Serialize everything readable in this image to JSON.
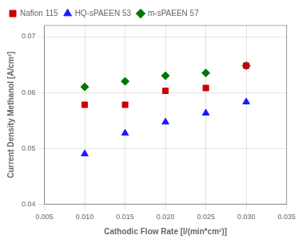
{
  "chart_data": {
    "type": "scatter",
    "xlabel": "Cathodic Flow Rate [l/(min*cm²)]",
    "ylabel": "Current Density Methanol [A/cm²]",
    "series": [
      {
        "name": "Nafion 115",
        "color": "#cc0000",
        "marker": "square",
        "x": [
          0.01,
          0.015,
          0.02,
          0.025,
          0.03
        ],
        "values": [
          0.0578,
          0.0578,
          0.0603,
          0.0608,
          0.0648
        ]
      },
      {
        "name": "HQ-sPAEEN 53",
        "color": "#1a1aff",
        "marker": "triangle",
        "x": [
          0.01,
          0.015,
          0.02,
          0.025,
          0.03
        ],
        "values": [
          0.049,
          0.0527,
          0.0547,
          0.0563,
          0.0583
        ]
      },
      {
        "name": "m-sPAEEN 57",
        "color": "#007700",
        "marker": "diamond",
        "x": [
          0.01,
          0.015,
          0.02,
          0.025,
          0.03
        ],
        "values": [
          0.061,
          0.062,
          0.063,
          0.0635,
          0.0648
        ]
      }
    ],
    "xlim": [
      0.005,
      0.035
    ],
    "ylim": [
      0.04,
      0.072
    ],
    "xticks": [
      0.005,
      {
        "value": 0.01,
        "label": "0.010"
      },
      0.015,
      {
        "value": 0.02,
        "label": "0.020"
      },
      0.025,
      {
        "value": 0.03,
        "label": "0.030"
      },
      0.035
    ],
    "yticks": [
      0.04,
      0.05,
      0.06,
      0.07
    ],
    "grid": true,
    "legend": "upper left"
  }
}
